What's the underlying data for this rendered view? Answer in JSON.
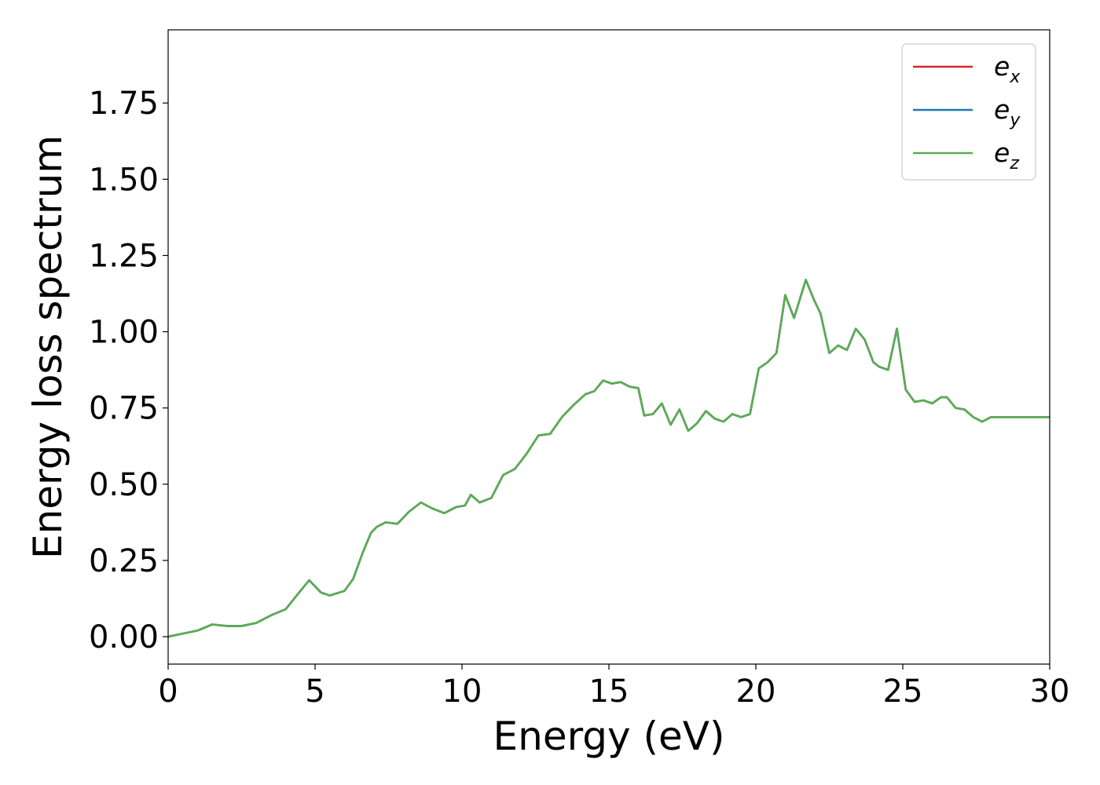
{
  "chart_data": {
    "type": "line",
    "title": "",
    "xlabel": "Energy (eV)",
    "ylabel": "Energy loss spectrum",
    "xlim": [
      0,
      30
    ],
    "ylim": [
      -0.09,
      1.99
    ],
    "xticks": [
      0,
      5,
      10,
      15,
      20,
      25,
      30
    ],
    "xtick_labels": [
      "0",
      "5",
      "10",
      "15",
      "20",
      "25",
      "30"
    ],
    "yticks": [
      0.0,
      0.25,
      0.5,
      0.75,
      1.0,
      1.25,
      1.5,
      1.75
    ],
    "ytick_labels": [
      "0.00",
      "0.25",
      "0.50",
      "0.75",
      "1.00",
      "1.25",
      "1.50",
      "1.75"
    ],
    "grid": false,
    "legend_position": "top-right",
    "x": [
      0,
      0.5,
      1.0,
      1.5,
      2.0,
      2.5,
      3.0,
      3.5,
      4.0,
      4.5,
      4.8,
      5.2,
      5.5,
      6.0,
      6.3,
      6.6,
      6.9,
      7.1,
      7.4,
      7.8,
      8.2,
      8.6,
      9.0,
      9.4,
      9.8,
      10.1,
      10.3,
      10.6,
      11.0,
      11.4,
      11.8,
      12.2,
      12.6,
      13.0,
      13.4,
      13.8,
      14.2,
      14.5,
      14.8,
      15.1,
      15.4,
      15.7,
      16.0,
      16.2,
      16.5,
      16.8,
      17.1,
      17.4,
      17.7,
      18.0,
      18.3,
      18.6,
      18.9,
      19.2,
      19.5,
      19.8,
      20.1,
      20.4,
      20.7,
      21.0,
      21.3,
      21.7,
      22.0,
      22.2,
      22.5,
      22.8,
      23.1,
      23.4,
      23.7,
      24.0,
      24.2,
      24.5,
      24.8,
      25.1,
      25.4,
      25.7,
      26.0,
      26.3,
      26.5,
      26.8,
      27.1,
      27.4,
      27.7,
      28.0,
      28.3,
      28.6,
      28.9,
      29.2,
      29.5,
      29.8,
      30.0
    ],
    "series": [
      {
        "name": "e_x",
        "label_main": "e",
        "label_sub": "x",
        "color": "#d62728",
        "values": [
          0.0,
          0.01,
          0.02,
          0.04,
          0.035,
          0.035,
          0.045,
          0.07,
          0.09,
          0.15,
          0.185,
          0.145,
          0.135,
          0.15,
          0.19,
          0.27,
          0.34,
          0.36,
          0.375,
          0.37,
          0.41,
          0.44,
          0.42,
          0.405,
          0.425,
          0.43,
          0.465,
          0.44,
          0.455,
          0.53,
          0.55,
          0.6,
          0.66,
          0.665,
          0.72,
          0.76,
          0.795,
          0.805,
          0.84,
          0.83,
          0.835,
          0.82,
          0.815,
          0.725,
          0.73,
          0.765,
          0.695,
          0.745,
          0.675,
          0.7,
          0.74,
          0.715,
          0.705,
          0.73,
          0.72,
          0.73,
          0.88,
          0.9,
          0.93,
          1.12,
          1.045,
          1.17,
          1.1,
          1.06,
          0.93,
          0.955,
          0.94,
          1.01,
          0.975,
          0.9,
          0.885,
          0.875,
          1.01,
          0.81,
          0.77,
          0.775,
          0.765,
          0.785,
          0.785,
          0.75,
          0.745,
          0.72,
          0.705,
          0.72,
          0.72,
          0.72,
          0.72,
          0.72,
          0.72,
          0.72,
          0.72
        ]
      },
      {
        "name": "e_y",
        "label_main": "e",
        "label_sub": "y",
        "color": "#1f77b4",
        "values": [
          0.0,
          0.01,
          0.02,
          0.04,
          0.035,
          0.035,
          0.045,
          0.07,
          0.09,
          0.15,
          0.185,
          0.145,
          0.135,
          0.15,
          0.19,
          0.27,
          0.34,
          0.36,
          0.375,
          0.37,
          0.41,
          0.44,
          0.42,
          0.405,
          0.425,
          0.43,
          0.465,
          0.44,
          0.455,
          0.53,
          0.55,
          0.6,
          0.66,
          0.665,
          0.72,
          0.76,
          0.795,
          0.805,
          0.84,
          0.83,
          0.835,
          0.82,
          0.815,
          0.725,
          0.73,
          0.765,
          0.695,
          0.745,
          0.675,
          0.7,
          0.74,
          0.715,
          0.705,
          0.73,
          0.72,
          0.73,
          0.88,
          0.9,
          0.93,
          1.12,
          1.045,
          1.17,
          1.1,
          1.06,
          0.93,
          0.955,
          0.94,
          1.01,
          0.975,
          0.9,
          0.885,
          0.875,
          1.01,
          0.81,
          0.77,
          0.775,
          0.765,
          0.785,
          0.785,
          0.75,
          0.745,
          0.72,
          0.705,
          0.72,
          0.72,
          0.72,
          0.72,
          0.72,
          0.72,
          0.72,
          0.72
        ]
      },
      {
        "name": "e_z",
        "label_main": "e",
        "label_sub": "z",
        "color": "#5aad52",
        "values": [
          0.0,
          0.01,
          0.02,
          0.04,
          0.035,
          0.035,
          0.045,
          0.07,
          0.09,
          0.15,
          0.185,
          0.145,
          0.135,
          0.15,
          0.19,
          0.27,
          0.34,
          0.36,
          0.375,
          0.37,
          0.41,
          0.44,
          0.42,
          0.405,
          0.425,
          0.43,
          0.465,
          0.44,
          0.455,
          0.53,
          0.55,
          0.6,
          0.66,
          0.665,
          0.72,
          0.76,
          0.795,
          0.805,
          0.84,
          0.83,
          0.835,
          0.82,
          0.815,
          0.725,
          0.73,
          0.765,
          0.695,
          0.745,
          0.675,
          0.7,
          0.74,
          0.715,
          0.705,
          0.73,
          0.72,
          0.73,
          0.88,
          0.9,
          0.93,
          1.12,
          1.045,
          1.17,
          1.1,
          1.06,
          0.93,
          0.955,
          0.94,
          1.01,
          0.975,
          0.9,
          0.885,
          0.875,
          1.01,
          0.81,
          0.77,
          0.775,
          0.765,
          0.785,
          0.785,
          0.75,
          0.745,
          0.72,
          0.705,
          0.72,
          0.72,
          0.72,
          0.72,
          0.72,
          0.72,
          0.72,
          0.72
        ]
      }
    ]
  }
}
